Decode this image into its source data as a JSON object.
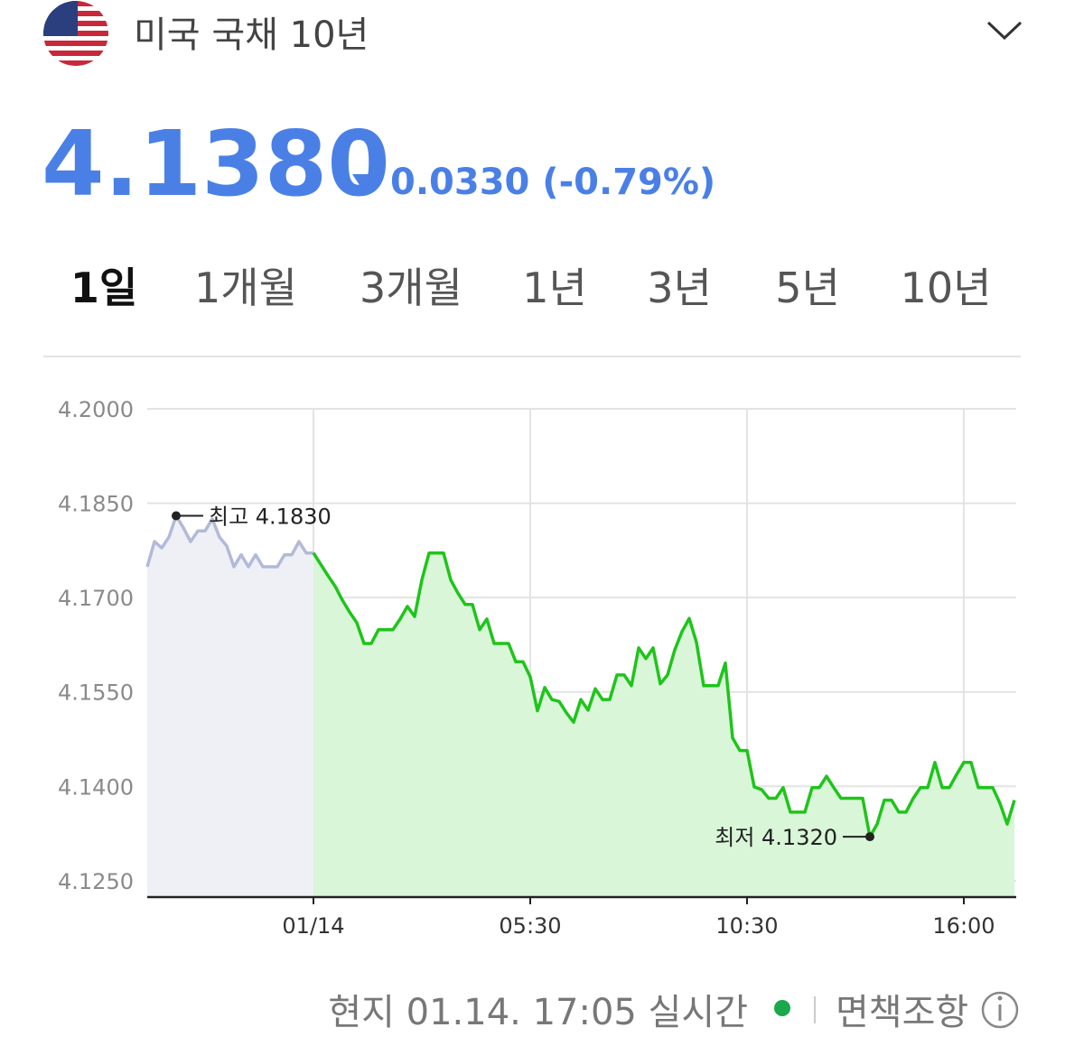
{
  "header": {
    "title": "미국 국채 10년",
    "price": "4.1380",
    "change": "0.0330 (-0.79%)"
  },
  "tabs": {
    "items": [
      "1일",
      "1개월",
      "3개월",
      "1년",
      "3년",
      "5년",
      "10년"
    ],
    "selected": 0
  },
  "chart_data": {
    "type": "line",
    "xlim": [
      0,
      120
    ],
    "ylim": [
      4.1224,
      4.2
    ],
    "xticks": [
      {
        "value": 23,
        "label": "01/14"
      },
      {
        "value": 53,
        "label": "05:30"
      },
      {
        "value": 83,
        "label": "10:30"
      },
      {
        "value": 113,
        "label": "16:00"
      }
    ],
    "yticks": [
      {
        "value": 4.2,
        "label": "4.2000"
      },
      {
        "value": 4.185,
        "label": "4.1850"
      },
      {
        "value": 4.17,
        "label": "4.1700"
      },
      {
        "value": 4.155,
        "label": "4.1550"
      },
      {
        "value": 4.14,
        "label": "4.1400"
      },
      {
        "value": 4.125,
        "label": "4.1250"
      }
    ],
    "grid": true,
    "series": [
      {
        "color": "#b3b9d8",
        "area_color": "#eff0f6",
        "x": [
          0,
          1,
          2,
          3,
          4,
          5,
          6,
          7,
          8,
          9,
          10,
          11,
          12,
          13,
          14,
          15,
          16,
          17,
          18,
          19,
          20,
          21,
          22,
          23
        ],
        "values": [
          4.1749,
          4.1789,
          4.1779,
          4.1796,
          4.183,
          4.1811,
          4.1789,
          4.1806,
          4.1806,
          4.1825,
          4.1796,
          4.1782,
          4.1749,
          4.1768,
          4.1749,
          4.1768,
          4.1749,
          4.1749,
          4.1749,
          4.1768,
          4.1768,
          4.1789,
          4.1771,
          4.1771
        ]
      },
      {
        "color": "#1fc41a",
        "area_color": "#d9f6d9",
        "x": [
          23,
          24,
          25,
          26,
          27,
          28,
          29,
          30,
          31,
          32,
          33,
          34,
          35,
          36,
          37,
          38,
          39,
          40,
          41,
          42,
          43,
          44,
          45,
          46,
          47,
          48,
          49,
          50,
          51,
          52,
          53,
          54,
          55,
          56,
          57,
          58,
          59,
          60,
          61,
          62,
          63,
          64,
          65,
          66,
          67,
          68,
          69,
          70,
          71,
          72,
          73,
          74,
          75,
          76,
          77,
          78,
          79,
          80,
          81,
          82,
          83,
          84,
          85,
          86,
          87,
          88,
          89,
          90,
          91,
          92,
          93,
          94,
          95,
          96,
          97,
          98,
          99,
          100,
          101,
          102,
          103,
          104,
          105,
          106,
          107,
          108,
          109,
          110,
          111,
          112,
          113,
          114,
          115,
          116,
          117,
          118,
          119,
          120
        ],
        "values": [
          4.1771,
          4.1753,
          4.1735,
          4.1718,
          4.1696,
          4.1677,
          4.166,
          4.1627,
          4.1627,
          4.1649,
          4.1649,
          4.1649,
          4.1666,
          4.1686,
          4.167,
          4.1728,
          4.1771,
          4.1771,
          4.1771,
          4.1728,
          4.1707,
          4.1689,
          4.1689,
          4.1649,
          4.1666,
          4.1627,
          4.1627,
          4.1627,
          4.1598,
          4.1598,
          4.1574,
          4.152,
          4.1557,
          4.1538,
          4.1535,
          4.1517,
          4.1502,
          4.1538,
          4.1521,
          4.1555,
          4.1538,
          4.1538,
          4.1577,
          4.1577,
          4.156,
          4.162,
          4.1603,
          4.162,
          4.1563,
          4.1577,
          4.1617,
          4.1646,
          4.1667,
          4.1629,
          4.156,
          4.156,
          4.156,
          4.1596,
          4.1477,
          4.1457,
          4.1457,
          4.1399,
          4.1395,
          4.1381,
          4.1381,
          4.1398,
          4.1359,
          4.1359,
          4.1359,
          4.1398,
          4.1398,
          4.1416,
          4.1398,
          4.1381,
          4.1381,
          4.1381,
          4.1381,
          4.132,
          4.134,
          4.1378,
          4.1378,
          4.1359,
          4.1359,
          4.1381,
          4.1398,
          4.1398,
          4.1438,
          4.1398,
          4.1398,
          4.1419,
          4.1438,
          4.1438,
          4.1398,
          4.1398,
          4.1398,
          4.1373,
          4.134,
          4.1378
        ]
      }
    ],
    "annotations": [
      {
        "text": "최고 4.1830",
        "x": 4,
        "y": 4.183,
        "side": "right"
      },
      {
        "text": "최저 4.1320",
        "x": 100,
        "y": 4.132,
        "side": "left"
      }
    ]
  },
  "footer": {
    "status": "현지 01.14. 17:05 실시간",
    "disclaimer": "면책조항"
  }
}
